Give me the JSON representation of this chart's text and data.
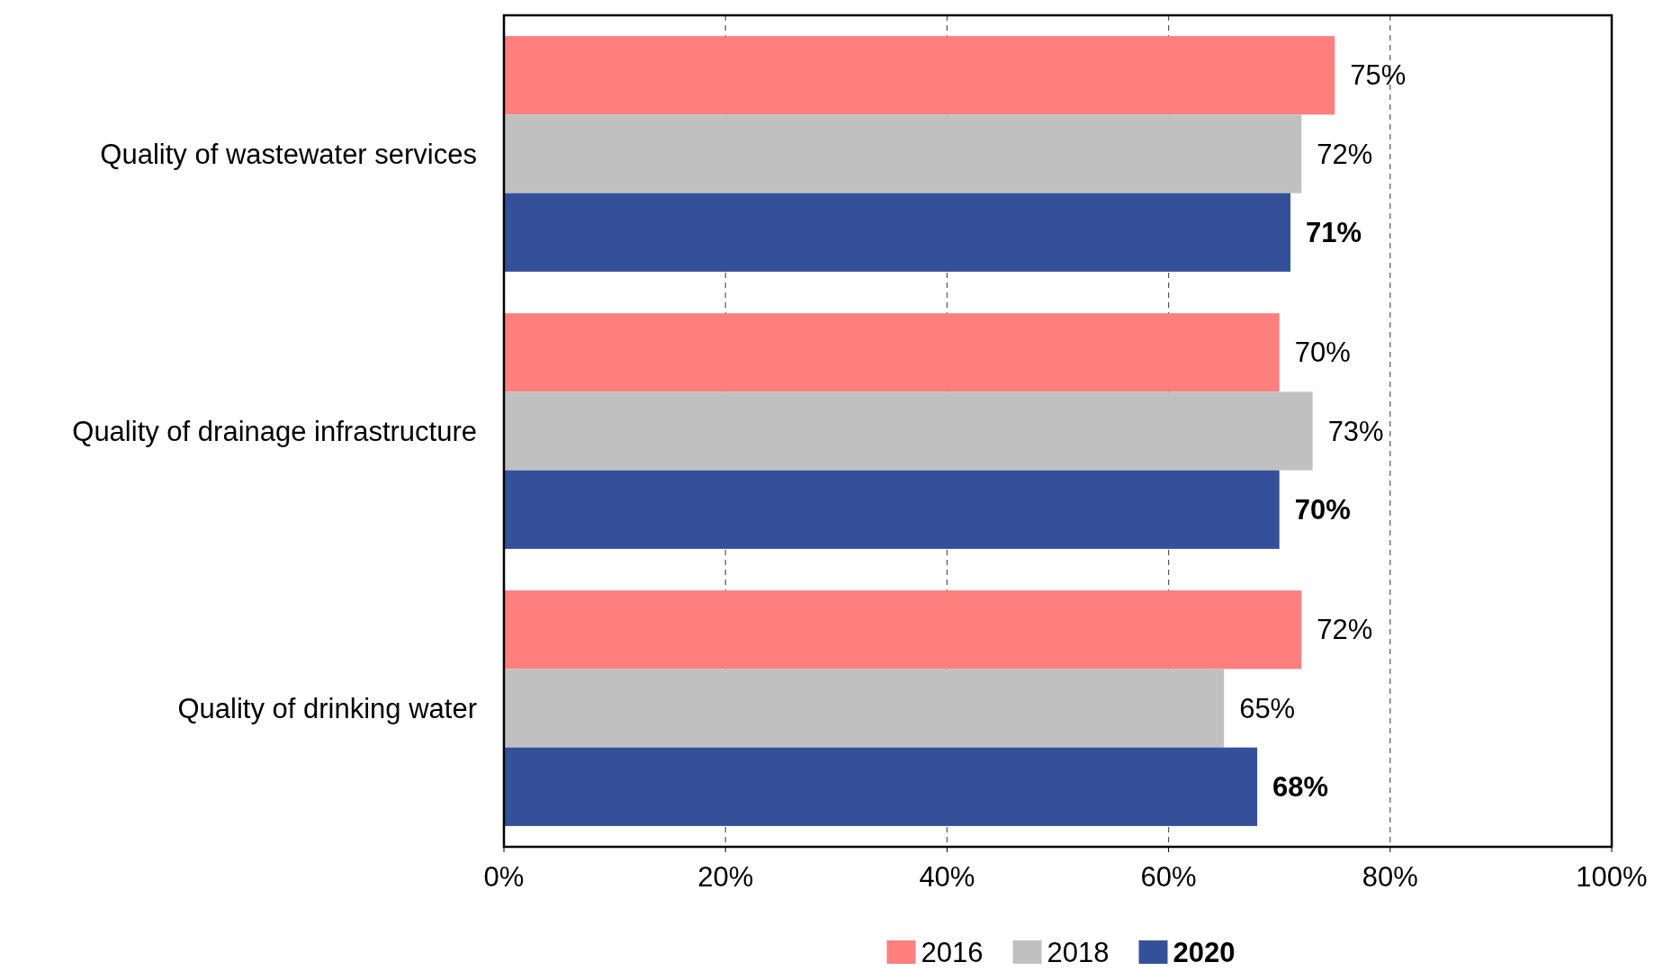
{
  "chart_data": {
    "type": "bar",
    "orientation": "horizontal",
    "categories": [
      "Quality of wastewater services",
      "Quality of drainage infrastructure",
      "Quality of drinking water"
    ],
    "series": [
      {
        "name": "2016",
        "color": "#ff7f7f",
        "values": [
          75,
          70,
          72
        ],
        "value_labels": [
          "75%",
          "70%",
          "72%"
        ]
      },
      {
        "name": "2018",
        "color": "#c0c0c0",
        "values": [
          72,
          73,
          65
        ],
        "value_labels": [
          "72%",
          "73%",
          "65%"
        ]
      },
      {
        "name": "2020",
        "color": "#34509a",
        "values": [
          71,
          70,
          68
        ],
        "value_labels": [
          "71%",
          "70%",
          "68%"
        ]
      }
    ],
    "xlim": [
      0,
      100
    ],
    "xticks": [
      {
        "value": 0,
        "label": "0%"
      },
      {
        "value": 20,
        "label": "20%"
      },
      {
        "value": 40,
        "label": "40%"
      },
      {
        "value": 60,
        "label": "60%"
      },
      {
        "value": 80,
        "label": "80%"
      },
      {
        "value": 100,
        "label": "100%"
      }
    ],
    "grid": "x",
    "legend": "bottom"
  }
}
